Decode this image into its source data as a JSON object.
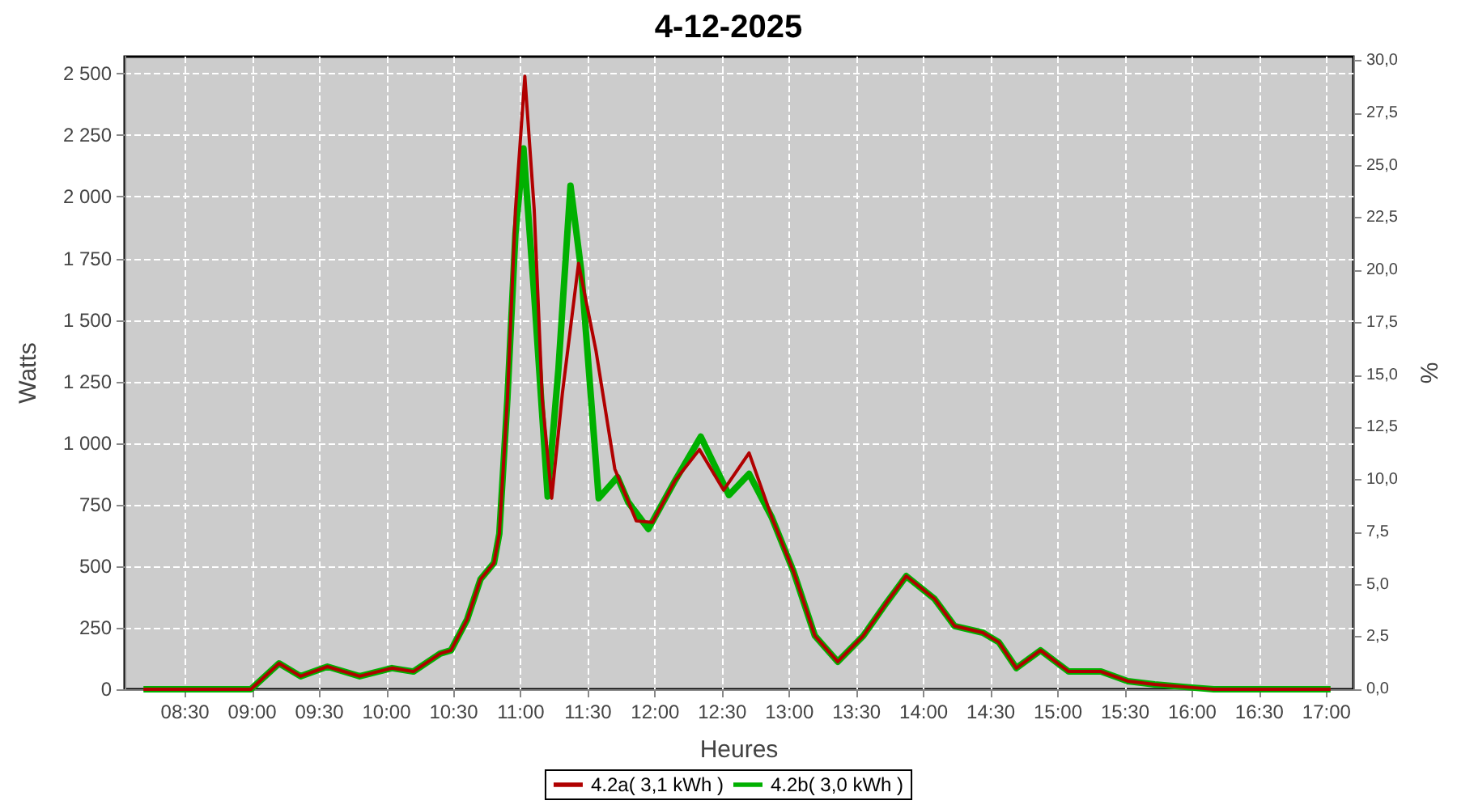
{
  "chart_data": {
    "type": "line",
    "title": "4-12-2025",
    "xlabel": "Heures",
    "ylabel": "Watts",
    "y2label": "%",
    "xlim": [
      8.05,
      17.2
    ],
    "xticks": [
      {
        "value": 8.5,
        "label": "08:30"
      },
      {
        "value": 9,
        "label": "09:00"
      },
      {
        "value": 9.5,
        "label": "09:30"
      },
      {
        "value": 10,
        "label": "10:00"
      },
      {
        "value": 10.5,
        "label": "10:30"
      },
      {
        "value": 11,
        "label": "11:00"
      },
      {
        "value": 11.5,
        "label": "11:30"
      },
      {
        "value": 12,
        "label": "12:00"
      },
      {
        "value": 12.5,
        "label": "12:30"
      },
      {
        "value": 13,
        "label": "13:00"
      },
      {
        "value": 13.5,
        "label": "13:30"
      },
      {
        "value": 14,
        "label": "14:00"
      },
      {
        "value": 14.5,
        "label": "14:30"
      },
      {
        "value": 15,
        "label": "15:00"
      },
      {
        "value": 15.5,
        "label": "15:30"
      },
      {
        "value": 16,
        "label": "16:00"
      },
      {
        "value": 16.5,
        "label": "16:30"
      },
      {
        "value": 17,
        "label": "17:00"
      }
    ],
    "ylim": [
      0,
      2570
    ],
    "yticks": [
      0,
      250,
      500,
      750,
      {
        "value": 1000,
        "label": "1 000"
      },
      {
        "value": 1250,
        "label": "1 250"
      },
      {
        "value": 1500,
        "label": "1 500"
      },
      {
        "value": 1750,
        "label": "1 750"
      },
      {
        "value": 2000,
        "label": "2 000"
      },
      {
        "value": 2250,
        "label": "2 250"
      },
      {
        "value": 2500,
        "label": "2 500"
      }
    ],
    "y2lim": [
      0,
      30.2
    ],
    "y2ticks": [
      {
        "value": 0,
        "label": "0,0"
      },
      {
        "value": 2.5,
        "label": "2,5"
      },
      {
        "value": 5,
        "label": "5,0"
      },
      {
        "value": 7.5,
        "label": "7,5"
      },
      {
        "value": 10,
        "label": "10,0"
      },
      {
        "value": 12.5,
        "label": "12,5"
      },
      {
        "value": 15,
        "label": "15,0"
      },
      {
        "value": 17.5,
        "label": "17,5"
      },
      {
        "value": 20,
        "label": "20,0"
      },
      {
        "value": 22.5,
        "label": "22,5"
      },
      {
        "value": 25,
        "label": "25,0"
      },
      {
        "value": 27.5,
        "label": "27,5"
      },
      {
        "value": 30,
        "label": "30,0"
      }
    ],
    "grid": true,
    "legend": "bottom",
    "marker": "none",
    "line_style": "solid",
    "series": [
      {
        "name": "4.2a( 3,1 kWh )",
        "color": "#b00000",
        "x": [
          8.19,
          8.99,
          9.2,
          9.36,
          9.56,
          9.8,
          10.04,
          10.2,
          10.4,
          10.48,
          10.6,
          10.7,
          10.8,
          10.84,
          10.9,
          10.96,
          11.03,
          11.1,
          11.16,
          11.23,
          11.31,
          11.43,
          11.56,
          11.7,
          11.86,
          11.98,
          12.15,
          12.33,
          12.51,
          12.7,
          12.87,
          13.03,
          13.19,
          13.36,
          13.55,
          13.72,
          13.87,
          14.08,
          14.23,
          14.44,
          14.56,
          14.69,
          14.87,
          15.08,
          15.32,
          15.52,
          15.72,
          16.0,
          16.16,
          17.03
        ],
        "values": [
          0,
          0,
          105,
          53,
          92,
          53,
          86,
          72,
          145,
          158,
          283,
          447,
          513,
          632,
          1178,
          1947,
          2490,
          1947,
          1178,
          776,
          1204,
          1730,
          1375,
          895,
          684,
          678,
          849,
          974,
          809,
          960,
          697,
          480,
          217,
          112,
          217,
          349,
          460,
          368,
          257,
          230,
          191,
          86,
          158,
          72,
          72,
          33,
          20,
          7,
          0,
          0
        ]
      },
      {
        "name": "4.2b( 3,0 kWh )",
        "color": "#00b000",
        "x": [
          8.19,
          8.99,
          9.2,
          9.36,
          9.56,
          9.8,
          10.04,
          10.2,
          10.4,
          10.48,
          10.6,
          10.7,
          10.8,
          10.84,
          10.9,
          10.96,
          11.02,
          11.1,
          11.2,
          11.28,
          11.37,
          11.45,
          11.58,
          11.72,
          11.8,
          11.95,
          12.15,
          12.34,
          12.55,
          12.7,
          12.87,
          13.03,
          13.19,
          13.36,
          13.55,
          13.72,
          13.87,
          14.08,
          14.23,
          14.44,
          14.56,
          14.69,
          14.87,
          15.08,
          15.32,
          15.52,
          15.72,
          16.0,
          16.16,
          17.03
        ],
        "values": [
          0,
          0,
          105,
          53,
          92,
          53,
          86,
          72,
          145,
          158,
          283,
          447,
          513,
          632,
          1178,
          1850,
          2197,
          1600,
          783,
          1300,
          2046,
          1700,
          776,
          862,
          760,
          651,
          849,
          1026,
          789,
          875,
          697,
          480,
          217,
          112,
          217,
          349,
          460,
          368,
          257,
          230,
          191,
          86,
          158,
          72,
          72,
          33,
          20,
          7,
          0,
          0
        ]
      }
    ]
  }
}
